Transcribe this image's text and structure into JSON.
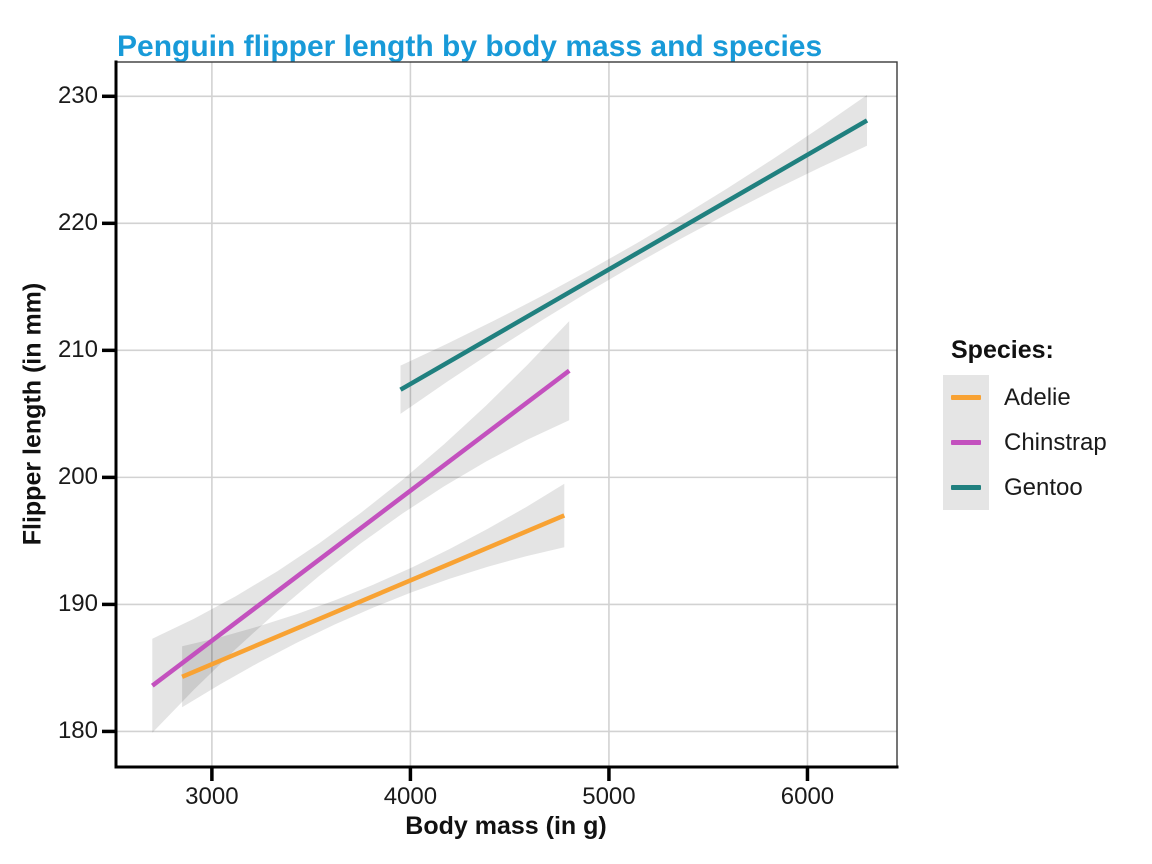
{
  "title": "Penguin flipper length by body mass and species",
  "title_color": "#189AD8",
  "chart_data": {
    "type": "line",
    "title": "Penguin flipper length by body mass and species",
    "xlabel": "Body mass (in g)",
    "ylabel": "Flipper length (in mm)",
    "xlim": [
      2517,
      6451
    ],
    "ylim": [
      177.2,
      232.7
    ],
    "x_ticks": [
      3000,
      4000,
      5000,
      6000
    ],
    "y_ticks": [
      180,
      190,
      200,
      210,
      220,
      230
    ],
    "grid": true,
    "legend_title": "Species:",
    "legend_position": "right",
    "series": [
      {
        "name": "Adelie",
        "color": "#F8A233",
        "x": [
          2850,
          4775
        ],
        "y": [
          184.3,
          197.0
        ],
        "ci_halfwidth": [
          2.4,
          0.9,
          2.5
        ]
      },
      {
        "name": "Chinstrap",
        "color": "#C351BE",
        "x": [
          2700,
          4800
        ],
        "y": [
          183.6,
          208.4
        ],
        "ci_halfwidth": [
          3.7,
          1.2,
          3.9
        ]
      },
      {
        "name": "Gentoo",
        "color": "#20807F",
        "x": [
          3950,
          6300
        ],
        "y": [
          206.9,
          228.1
        ],
        "ci_halfwidth": [
          1.9,
          0.8,
          2.0
        ]
      }
    ],
    "ci_fill": "rgba(0,0,0,0.105)",
    "gridline_color": "#D2D2D2",
    "axis_line_color": "#000000",
    "panel_border_color": "#3a3a3a"
  },
  "legend": {
    "title": "Species:",
    "items": [
      {
        "label": "Adelie",
        "color": "#F8A233"
      },
      {
        "label": "Chinstrap",
        "color": "#C351BE"
      },
      {
        "label": "Gentoo",
        "color": "#20807F"
      }
    ]
  },
  "axes": {
    "x_label": "Body mass (in g)",
    "y_label": "Flipper length (in mm)"
  }
}
